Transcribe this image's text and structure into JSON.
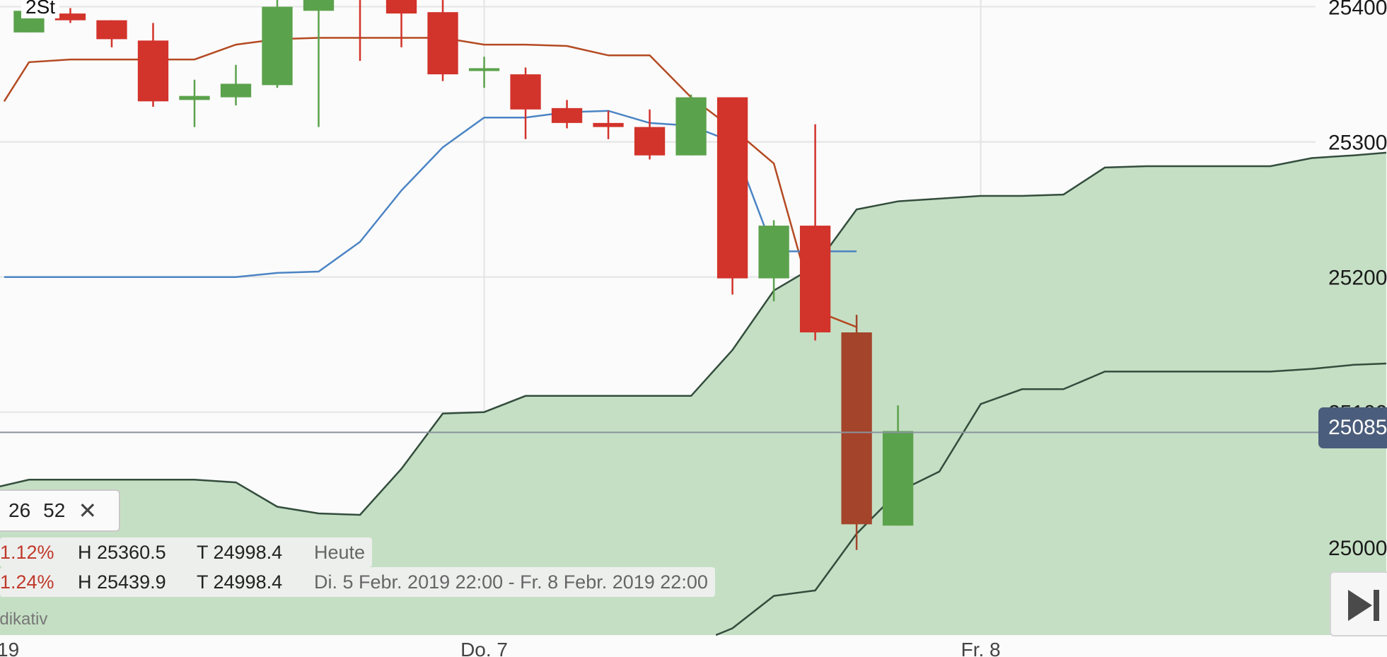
{
  "timeframe_label": "2St",
  "current_price_badge": "25085",
  "indicator_params": {
    "p2": "26",
    "p3": "52",
    "close_icon": "close-icon"
  },
  "stats": [
    {
      "change_pct": "1.12%",
      "high": "H 25360.5",
      "low": "T 24998.4",
      "period": "Heute"
    },
    {
      "change_pct": "1.24%",
      "high": "H 25439.9",
      "low": "T 24998.4",
      "period": "Di. 5 Febr. 2019 22:00 - Fr. 8 Febr. 2019 22:00"
    }
  ],
  "indicative_text": "ndikativ",
  "colors": {
    "up": "#5ba24c",
    "down": "#d2332b",
    "down_dark": "#a3442b",
    "kijun": "#b44a22",
    "tenkan": "#4b84c4",
    "cloud": "#c5dfc4",
    "span_line": "#334d3d"
  },
  "chart_data": {
    "type": "candlestick",
    "ylim": [
      24935,
      25405
    ],
    "xlim": [
      -0.7,
      32.8
    ],
    "yticks": [
      {
        "value": 25000,
        "label": "25000"
      },
      {
        "value": 25100,
        "label": "25100"
      },
      {
        "value": 25200,
        "label": "25200"
      },
      {
        "value": 25300,
        "label": "25300"
      },
      {
        "value": 25400,
        "label": "25400"
      }
    ],
    "xticks": [
      {
        "x": 11.0,
        "label": "Do. 7"
      },
      {
        "x": 23.0,
        "label": "Fr. 8"
      }
    ],
    "x_left_cut_label": "19",
    "current_price": 25085,
    "candles": [
      {
        "x": 0,
        "o": 25381,
        "h": 25397,
        "l": 25381,
        "c": 25397
      },
      {
        "x": 1,
        "o": 25395,
        "h": 25399,
        "l": 25388,
        "c": 25390
      },
      {
        "x": 2,
        "o": 25390,
        "h": 25390,
        "l": 25370,
        "c": 25376
      },
      {
        "x": 3,
        "o": 25375,
        "h": 25388,
        "l": 25326,
        "c": 25330
      },
      {
        "x": 4,
        "o": 25331,
        "h": 25346,
        "l": 25311,
        "c": 25334
      },
      {
        "x": 5,
        "o": 25333,
        "h": 25357,
        "l": 25327,
        "c": 25343
      },
      {
        "x": 6,
        "o": 25342,
        "h": 25408,
        "l": 25340,
        "c": 25400
      },
      {
        "x": 7,
        "o": 25397,
        "h": 25430,
        "l": 25311,
        "c": 25420
      },
      {
        "x": 8,
        "o": 25415,
        "h": 25415,
        "l": 25360,
        "c": 25410
      },
      {
        "x": 9,
        "o": 25408,
        "h": 25410,
        "l": 25370,
        "c": 25395
      },
      {
        "x": 10,
        "o": 25396,
        "h": 25405,
        "l": 25345,
        "c": 25350
      },
      {
        "x": 11,
        "o": 25354,
        "h": 25363,
        "l": 25340,
        "c": 25354
      },
      {
        "x": 12,
        "o": 25350,
        "h": 25355,
        "l": 25302,
        "c": 25324
      },
      {
        "x": 13,
        "o": 25325,
        "h": 25331,
        "l": 25310,
        "c": 25314
      },
      {
        "x": 14,
        "o": 25314,
        "h": 25323,
        "l": 25302,
        "c": 25311
      },
      {
        "x": 15,
        "o": 25311,
        "h": 25324,
        "l": 25287,
        "c": 25290
      },
      {
        "x": 16,
        "o": 25290,
        "h": 25335,
        "l": 25290,
        "c": 25333
      },
      {
        "x": 17,
        "o": 25333,
        "h": 25333,
        "l": 25187,
        "c": 25199
      },
      {
        "x": 18,
        "o": 25199,
        "h": 25242,
        "l": 25182,
        "c": 25238
      },
      {
        "x": 19,
        "o": 25238,
        "h": 25313,
        "l": 25153,
        "c": 25159
      },
      {
        "x": 20,
        "o": 25159,
        "h": 25172,
        "l": 24998,
        "c": 25017
      },
      {
        "x": 21,
        "o": 25016,
        "h": 25105,
        "l": 25016,
        "c": 25086
      }
    ],
    "series": [
      {
        "key": "kijun",
        "points": [
          [
            -0.6,
            25330
          ],
          [
            0,
            25359
          ],
          [
            1,
            25361
          ],
          [
            2,
            25361
          ],
          [
            3,
            25361
          ],
          [
            4,
            25361
          ],
          [
            5,
            25372
          ],
          [
            6,
            25376
          ],
          [
            7,
            25377
          ],
          [
            8,
            25377
          ],
          [
            9,
            25377
          ],
          [
            10,
            25377
          ],
          [
            11,
            25372
          ],
          [
            12,
            25372
          ],
          [
            13,
            25371
          ],
          [
            14,
            25364
          ],
          [
            15,
            25364
          ],
          [
            16,
            25333
          ],
          [
            17,
            25310
          ],
          [
            18,
            25284
          ],
          [
            19,
            25175
          ],
          [
            20,
            25163
          ]
        ]
      },
      {
        "key": "tenkan",
        "points": [
          [
            -0.6,
            25200
          ],
          [
            3,
            25200
          ],
          [
            5,
            25200
          ],
          [
            6,
            25203
          ],
          [
            7,
            25204
          ],
          [
            8,
            25226
          ],
          [
            9,
            25264
          ],
          [
            10,
            25296
          ],
          [
            11,
            25318
          ],
          [
            12,
            25318
          ],
          [
            13,
            25322
          ],
          [
            14,
            25323
          ],
          [
            15,
            25314
          ],
          [
            16,
            25312
          ],
          [
            17,
            25300
          ],
          [
            18,
            25219
          ],
          [
            19,
            25219
          ],
          [
            20,
            25219
          ]
        ]
      }
    ],
    "cloud": {
      "span_a": [
        [
          -0.7,
          25045
        ],
        [
          0,
          25050
        ],
        [
          4,
          25050
        ],
        [
          5,
          25048
        ],
        [
          6,
          25030
        ],
        [
          7,
          25025
        ],
        [
          8,
          25024
        ],
        [
          9,
          25058
        ],
        [
          10,
          25099
        ],
        [
          11,
          25100
        ],
        [
          12,
          25112
        ],
        [
          16,
          25112
        ],
        [
          17,
          25146
        ],
        [
          18,
          25190
        ],
        [
          19,
          25208
        ],
        [
          20,
          25250
        ],
        [
          21,
          25256
        ],
        [
          22,
          25258
        ],
        [
          23,
          25260
        ],
        [
          24,
          25260
        ],
        [
          25,
          25261
        ],
        [
          26,
          25281
        ],
        [
          27,
          25282
        ],
        [
          30,
          25282
        ],
        [
          31,
          25288
        ],
        [
          32,
          25290
        ],
        [
          32.8,
          25292
        ]
      ],
      "span_b": [
        [
          16.6,
          24935
        ],
        [
          17,
          24940
        ],
        [
          18,
          24964
        ],
        [
          19,
          24968
        ],
        [
          20,
          25010
        ],
        [
          21,
          25041
        ],
        [
          22,
          25056
        ],
        [
          23,
          25106
        ],
        [
          24,
          25117
        ],
        [
          25,
          25117
        ],
        [
          26,
          25130
        ],
        [
          30,
          25130
        ],
        [
          31,
          25132
        ],
        [
          32,
          25135
        ],
        [
          32.8,
          25136
        ]
      ]
    }
  }
}
